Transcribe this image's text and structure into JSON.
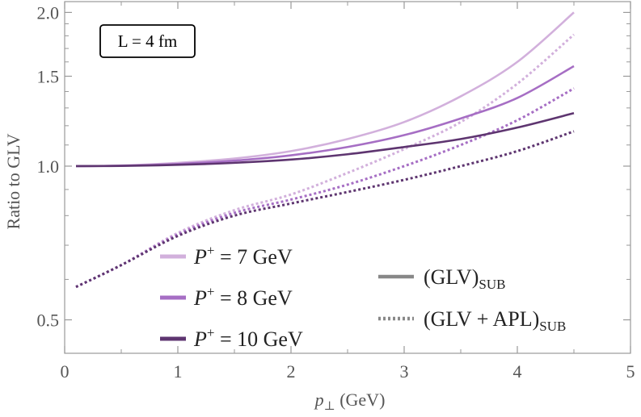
{
  "chart_data": {
    "type": "line",
    "title": "",
    "annotation": "L = 4 fm",
    "xlabel": {
      "symbol": "p",
      "subscript": "⊥",
      "unit": "(GeV)"
    },
    "ylabel": "Ratio to GLV",
    "xlim": [
      0,
      5
    ],
    "ylim": [
      0.43,
      2.1
    ],
    "yscale": "log",
    "grid": false,
    "xticks": [
      0,
      1,
      2,
      3,
      4,
      5
    ],
    "xtick_labels": [
      "0",
      "1",
      "2",
      "3",
      "4",
      "5"
    ],
    "yticks": [
      0.5,
      1.0,
      1.5,
      2.0
    ],
    "ytick_labels": [
      "0.5",
      "1.0",
      "1.5",
      "2.0"
    ],
    "x": [
      0.1,
      0.5,
      1.0,
      1.5,
      2.0,
      2.5,
      3.0,
      3.5,
      4.0,
      4.5
    ],
    "series": [
      {
        "name": "P+ = 7 GeV (GLV)SUB",
        "momentum": "7",
        "style": "solid",
        "color": "#d2b0dc",
        "values": [
          1.0,
          1.003,
          1.015,
          1.035,
          1.07,
          1.13,
          1.22,
          1.37,
          1.6,
          2.0
        ]
      },
      {
        "name": "P+ = 8 GeV (GLV)SUB",
        "momentum": "8",
        "style": "solid",
        "color": "#a66ec4",
        "values": [
          1.0,
          1.002,
          1.01,
          1.025,
          1.05,
          1.09,
          1.15,
          1.24,
          1.36,
          1.57
        ]
      },
      {
        "name": "P+ = 10 GeV (GLV)SUB",
        "momentum": "10",
        "style": "solid",
        "color": "#5e3570",
        "values": [
          1.0,
          1.001,
          1.006,
          1.015,
          1.03,
          1.055,
          1.09,
          1.13,
          1.19,
          1.27
        ]
      },
      {
        "name": "P+ = 7 GeV (GLV + APL)SUB",
        "momentum": "7",
        "style": "dotted",
        "color": "#d2b0dc",
        "values": [
          0.58,
          0.64,
          0.74,
          0.82,
          0.88,
          0.97,
          1.08,
          1.22,
          1.45,
          1.81
        ]
      },
      {
        "name": "P+ = 8 GeV (GLV + APL)SUB",
        "momentum": "8",
        "style": "dotted",
        "color": "#a66ec4",
        "values": [
          0.58,
          0.64,
          0.735,
          0.81,
          0.86,
          0.92,
          1.0,
          1.1,
          1.23,
          1.42
        ]
      },
      {
        "name": "P+ = 10 GeV (GLV + APL)SUB",
        "momentum": "10",
        "style": "dotted",
        "color": "#5e3570",
        "values": [
          0.58,
          0.64,
          0.73,
          0.8,
          0.845,
          0.89,
          0.94,
          1.0,
          1.07,
          1.17
        ]
      }
    ],
    "legend": {
      "momenta": [
        {
          "label_prefix": "P",
          "label_sup": "+",
          "label_rest": " = 7 GeV",
          "color": "#d2b0dc"
        },
        {
          "label_prefix": "P",
          "label_sup": "+",
          "label_rest": " = 8 GeV",
          "color": "#a66ec4"
        },
        {
          "label_prefix": "P",
          "label_sup": "+",
          "label_rest": " = 10 GeV",
          "color": "#5e3570"
        }
      ],
      "styles": [
        {
          "main": "(GLV)",
          "sub": "SUB",
          "dash": "solid"
        },
        {
          "main": "(GLV + APL)",
          "sub": "SUB",
          "dash": "dotted"
        }
      ]
    }
  }
}
